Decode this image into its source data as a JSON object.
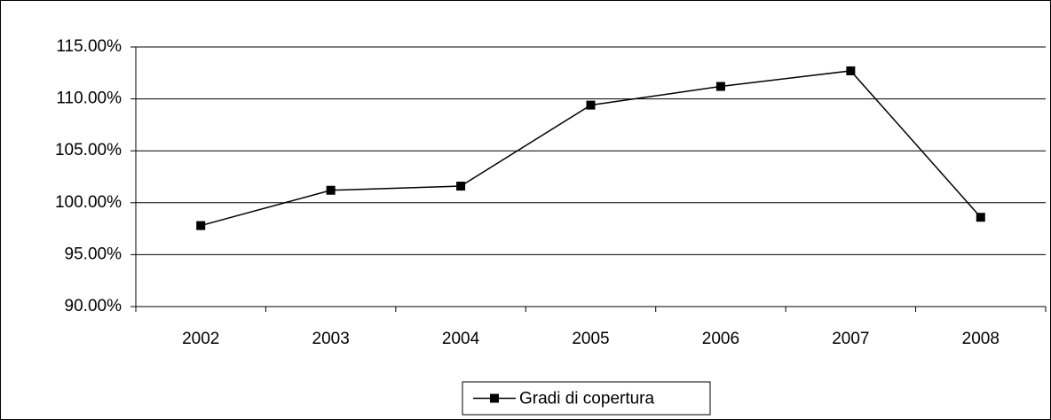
{
  "chart_data": {
    "type": "line",
    "categories": [
      "2002",
      "2003",
      "2004",
      "2005",
      "2006",
      "2007",
      "2008"
    ],
    "series": [
      {
        "name": "Gradi di copertura",
        "color": "#000000",
        "values": [
          97.8,
          101.2,
          101.6,
          109.4,
          111.2,
          112.7,
          98.6
        ]
      }
    ],
    "ylim": [
      90,
      115
    ],
    "yticks": [
      {
        "value": 90,
        "label": "90.00%"
      },
      {
        "value": 95,
        "label": "95.00%"
      },
      {
        "value": 100,
        "label": "100.00%"
      },
      {
        "value": 105,
        "label": "105.00%"
      },
      {
        "value": 110,
        "label": "110.00%"
      },
      {
        "value": 115,
        "label": "115.00%"
      }
    ],
    "grid": true,
    "legend": "bottom"
  }
}
